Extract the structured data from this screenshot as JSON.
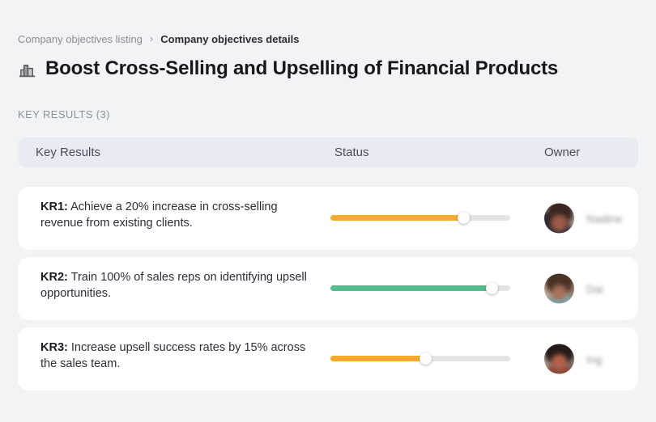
{
  "breadcrumb": {
    "separator": "›",
    "items": [
      {
        "label": "Company objectives listing"
      },
      {
        "label": "Company objectives details"
      }
    ]
  },
  "page": {
    "title": "Boost Cross-Selling and Upselling of Financial Products",
    "title_icon": "city-buildings-icon",
    "section_label": "KEY RESULTS (3)"
  },
  "table": {
    "headers": {
      "key_results": "Key Results",
      "status": "Status",
      "owner": "Owner"
    },
    "rows": [
      {
        "kr_label": "KR1:",
        "kr_text": "Achieve a 20% increase in cross-selling revenue from existing clients.",
        "progress_percent": 74,
        "progress_color": "#F8A92F",
        "owner_name": "Nadine"
      },
      {
        "kr_label": "KR2:",
        "kr_text": "Train 100% of sales reps on identifying upsell opportunities.",
        "progress_percent": 90,
        "progress_color": "#53BE8B",
        "owner_name": "Dai"
      },
      {
        "kr_label": "KR3:",
        "kr_text": "Increase upsell success rates by 15% across the sales team.",
        "progress_percent": 53,
        "progress_color": "#F8A92F",
        "owner_name": "Ing"
      }
    ]
  },
  "colors": {
    "page_background": "#F2F3F5",
    "header_background": "#E9EBF2",
    "card_background": "#FFFFFF",
    "progress_track": "#E4E4E6",
    "progress_orange": "#F8A92F",
    "progress_green": "#53BE8B"
  }
}
